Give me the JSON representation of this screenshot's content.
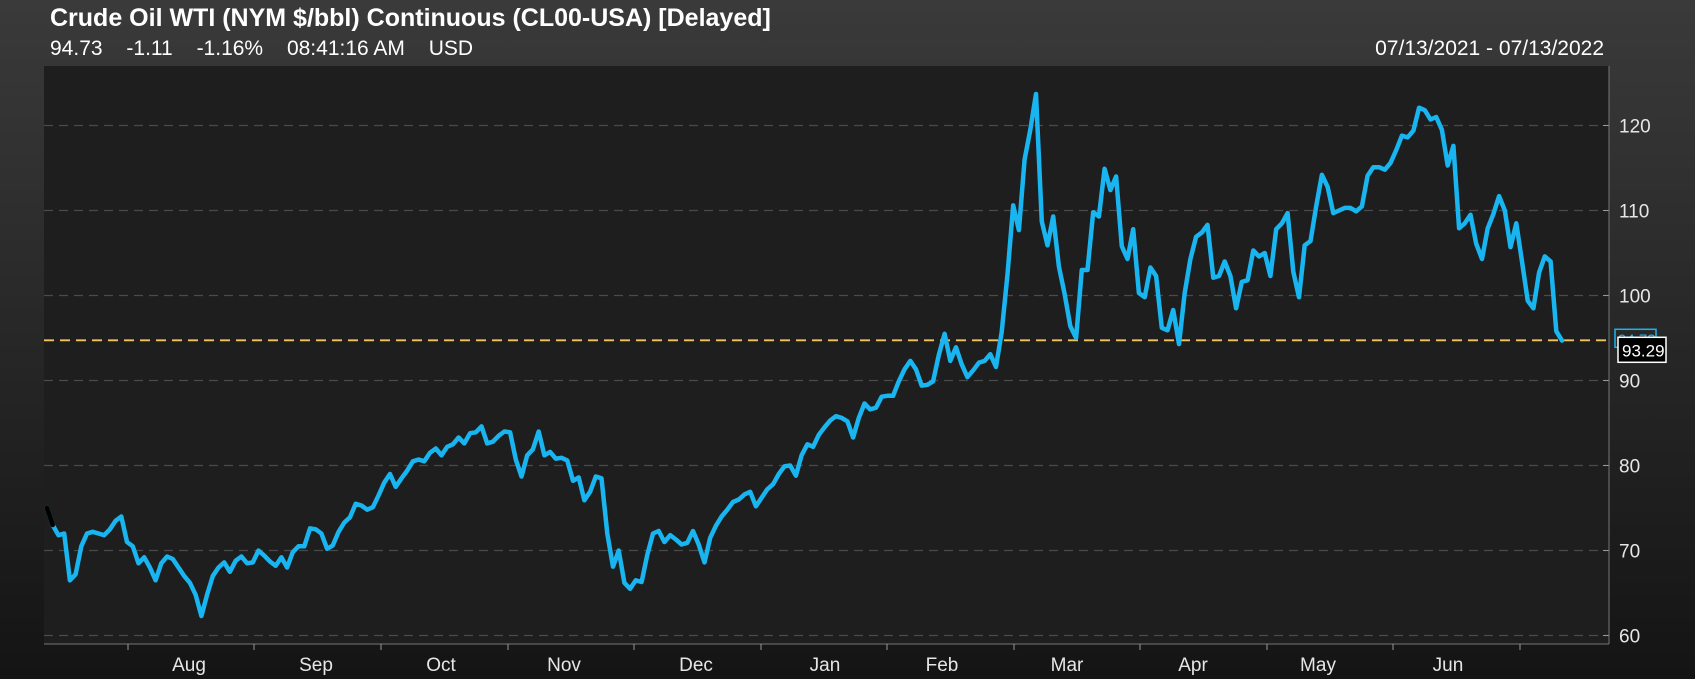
{
  "header": {
    "title": "Crude Oil WTI (NYM $/bbl) Continuous (CL00-USA) [Delayed]",
    "last": "94.73",
    "change": "-1.11",
    "change_pct": "-1.16%",
    "time": "08:41:16 AM",
    "currency": "USD",
    "date_range": "07/13/2021 - 07/13/2022"
  },
  "colors": {
    "line": "#19b5f0",
    "reference_line": "#f0c45a",
    "grid": "#4a4a4a",
    "start_segment": "#000000"
  },
  "chart_data": {
    "type": "line",
    "x_tick_labels": [
      "Aug",
      "Sep",
      "Oct",
      "Nov",
      "Dec",
      "Jan",
      "Feb",
      "Mar",
      "Apr",
      "May",
      "Jun"
    ],
    "y_ticks": [
      60,
      70,
      80,
      90,
      100,
      110,
      120
    ],
    "ylim": [
      59,
      127
    ],
    "grid": true,
    "reference_value": 94.73,
    "last_value_label": "94.73",
    "reference_value_label": "93.29",
    "series": [
      {
        "values": [
          75.0,
          73.0,
          71.8,
          72.0,
          66.5,
          67.2,
          70.5,
          72.0,
          72.2,
          72.0,
          71.8,
          72.5,
          73.5,
          74.0,
          71.0,
          70.5,
          68.5,
          69.2,
          68.0,
          66.5,
          68.5,
          69.3,
          69.0,
          68.0,
          67.0,
          66.2,
          64.8,
          62.3,
          64.8,
          67.0,
          68.0,
          68.6,
          67.5,
          68.8,
          69.3,
          68.5,
          68.6,
          70.0,
          69.4,
          68.7,
          68.2,
          69.2,
          68.0,
          69.8,
          70.5,
          70.5,
          72.6,
          72.5,
          72.0,
          70.2,
          70.6,
          72.2,
          73.3,
          73.9,
          75.5,
          75.3,
          74.8,
          75.1,
          76.5,
          78.0,
          79.0,
          77.5,
          78.5,
          79.4,
          80.5,
          80.7,
          80.5,
          81.5,
          82.0,
          81.2,
          82.2,
          82.5,
          83.3,
          82.6,
          83.8,
          83.9,
          84.6,
          82.6,
          82.8,
          83.5,
          84.0,
          83.9,
          80.7,
          78.7,
          81.2,
          81.9,
          84.0,
          81.2,
          81.6,
          80.8,
          80.9,
          80.6,
          78.2,
          78.6,
          75.9,
          76.9,
          78.7,
          78.5,
          72.0,
          68.1,
          70.0,
          66.2,
          65.5,
          66.5,
          66.3,
          69.5,
          72.0,
          72.3,
          71.0,
          71.8,
          71.3,
          70.7,
          70.9,
          72.3,
          70.7,
          68.6,
          71.5,
          72.9,
          74.0,
          74.8,
          75.7,
          76.0,
          76.6,
          76.9,
          75.2,
          76.2,
          77.2,
          77.8,
          79.0,
          79.9,
          80.0,
          78.8,
          81.2,
          82.5,
          82.2,
          83.6,
          84.5,
          85.3,
          85.8,
          85.6,
          85.2,
          83.3,
          85.6,
          87.3,
          86.6,
          86.8,
          88.1,
          88.2,
          88.2,
          89.9,
          91.3,
          92.3,
          91.3,
          89.4,
          89.5,
          89.9,
          93.0,
          95.5,
          92.3,
          93.9,
          91.9,
          90.4,
          91.2,
          92.1,
          92.3,
          93.1,
          91.6,
          95.7,
          102.5,
          110.6,
          107.7,
          116.0,
          119.5,
          123.7,
          108.7,
          105.9,
          109.3,
          103.4,
          100.2,
          96.4,
          95.0,
          103.0,
          103.0,
          109.8,
          109.3,
          114.9,
          112.4,
          114.0,
          105.8,
          104.3,
          107.8,
          100.3,
          99.8,
          103.3,
          102.3,
          96.2,
          95.9,
          98.3,
          94.3,
          100.3,
          104.3,
          106.9,
          107.4,
          108.3,
          102.1,
          102.3,
          104.0,
          102.3,
          98.5,
          101.6,
          101.8,
          105.3,
          104.6,
          105.0,
          102.3,
          107.8,
          108.5,
          109.7,
          102.8,
          99.8,
          105.9,
          106.4,
          110.5,
          114.2,
          112.8,
          109.7,
          110.0,
          110.3,
          110.3,
          109.9,
          110.5,
          114.1,
          115.1,
          115.1,
          114.8,
          115.6,
          117.1,
          118.8,
          118.6,
          119.4,
          122.1,
          121.8,
          120.7,
          121.0,
          119.5,
          115.3,
          117.6,
          107.9,
          108.5,
          109.5,
          106.1,
          104.3,
          107.9,
          109.6,
          111.7,
          110.0,
          105.7,
          108.5,
          104.0,
          99.4,
          98.5,
          102.7,
          104.6,
          104.0,
          95.8,
          94.7
        ]
      }
    ]
  }
}
